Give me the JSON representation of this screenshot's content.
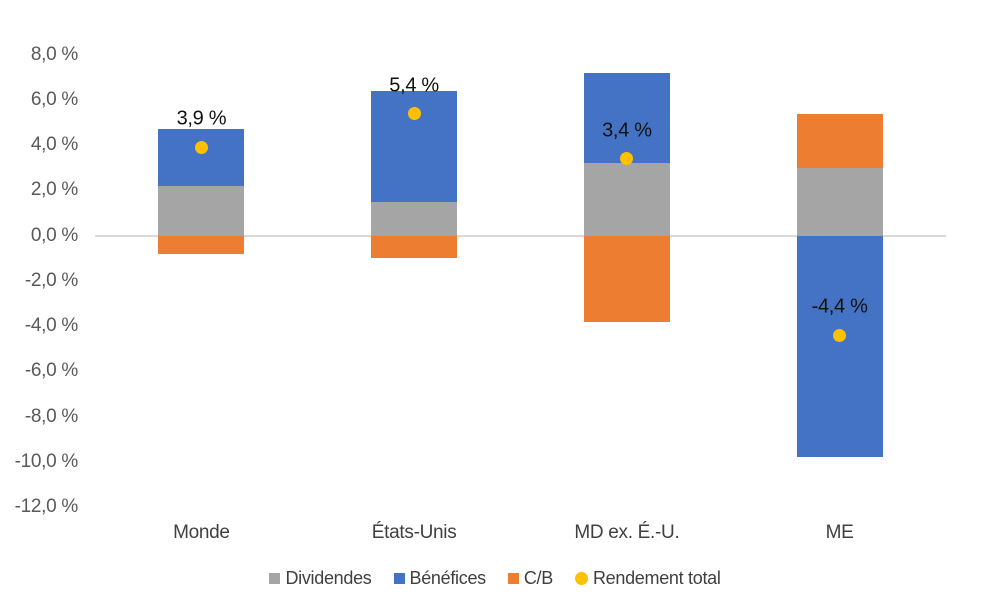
{
  "chart_data": {
    "type": "bar",
    "subtype": "stacked-with-total-markers",
    "title": "",
    "xlabel": "",
    "ylabel": "",
    "categories": [
      "Monde",
      "États-Unis",
      "MD ex. É.-U.",
      "ME"
    ],
    "series": [
      {
        "name": "Dividendes",
        "values": [
          2.2,
          1.5,
          3.2,
          3.0
        ]
      },
      {
        "name": "Bénéfices",
        "values": [
          2.5,
          4.9,
          4.0,
          -9.8
        ]
      },
      {
        "name": "C/B",
        "values": [
          -0.8,
          -1.0,
          -3.8,
          2.4
        ]
      }
    ],
    "total_series": {
      "name": "Rendement total",
      "values": [
        3.9,
        5.4,
        3.4,
        -4.4
      ],
      "labels": [
        "3,9 %",
        "5,4 %",
        "3,4 %",
        "-4,4 %"
      ]
    },
    "y_axis": {
      "ylim": [
        -12,
        8
      ],
      "ticks": [
        {
          "value": 8,
          "label": "8,0 %"
        },
        {
          "value": 6,
          "label": "6,0 %"
        },
        {
          "value": 4,
          "label": "4,0 %"
        },
        {
          "value": 2,
          "label": "2,0 %"
        },
        {
          "value": 0,
          "label": "0,0 %"
        },
        {
          "value": -2,
          "label": "-2,0 %"
        },
        {
          "value": -4,
          "label": "-4,0 %"
        },
        {
          "value": -6,
          "label": "-6,0 %"
        },
        {
          "value": -8,
          "label": "-8,0 %"
        },
        {
          "value": -10,
          "label": "-10,0 %"
        },
        {
          "value": -12,
          "label": "-12,0 %"
        }
      ],
      "gridlines": "zero-line-only"
    },
    "colors": {
      "Dividendes": "#a5a5a5",
      "Bénéfices": "#4472c4",
      "C/B": "#ed7d31",
      "Rendement total": "#ffc000",
      "zero_line": "#d9d9d9"
    },
    "legend": {
      "position": "bottom-center",
      "entries": [
        {
          "label": "Dividendes",
          "shape": "square",
          "color": "#a5a5a5"
        },
        {
          "label": "Bénéfices",
          "shape": "square",
          "color": "#4472c4"
        },
        {
          "label": "C/B",
          "shape": "square",
          "color": "#ed7d31"
        },
        {
          "label": "Rendement total",
          "shape": "circle",
          "color": "#ffc000"
        }
      ]
    }
  }
}
